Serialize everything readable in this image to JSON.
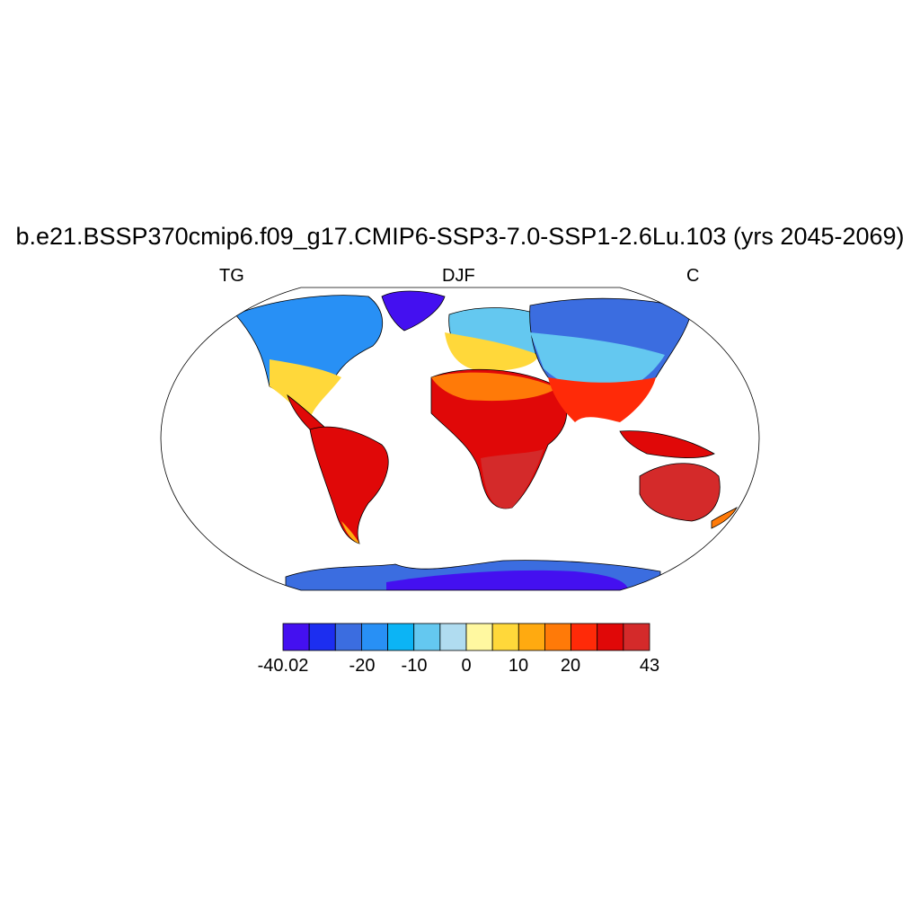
{
  "title": "b.e21.BSSP370cmip6.f09_g17.CMIP6-SSP3-7.0-SSP1-2.6Lu.103 (yrs 2045-2069)",
  "left_string": "TG",
  "center_string": "DJF",
  "right_string": "C",
  "colorbar": {
    "colors": [
      "#4410f0",
      "#1c2ef0",
      "#3b6de0",
      "#2890f5",
      "#0cb4f5",
      "#64c8f0",
      "#b0dcf0",
      "#fff8a0",
      "#ffd83a",
      "#ffaa10",
      "#ff7a08",
      "#ff2a08",
      "#e00808",
      "#d42a2a"
    ],
    "labels": [
      "-40.02",
      "-20",
      "-10",
      "0",
      "10",
      "20",
      "43"
    ]
  },
  "colors": {
    "ocean": "#ffffff",
    "coast": "#000000"
  }
}
